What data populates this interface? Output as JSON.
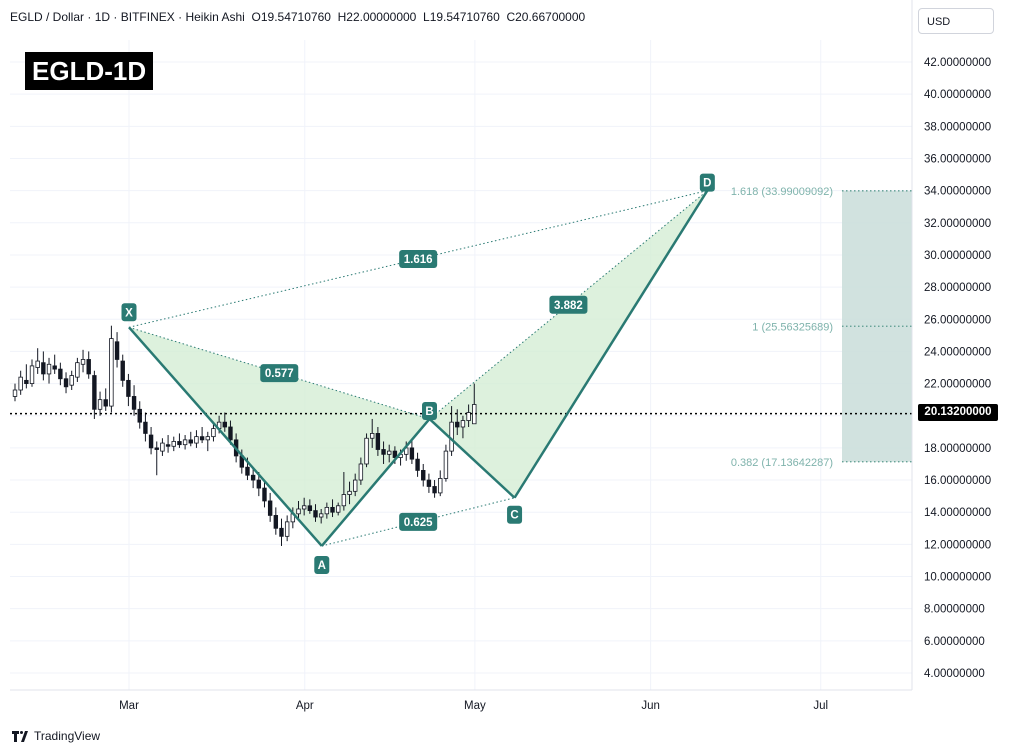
{
  "header": {
    "symbol": "EGLD / Dollar",
    "interval": "1D",
    "exchange": "BITFINEX",
    "style": "Heikin Ashi",
    "sep": "·",
    "slash": "/",
    "open_label": "O",
    "open": "19.54710760",
    "high_label": "H",
    "high": "22.00000000",
    "low_label": "L",
    "low": "19.54710760",
    "close_label": "C",
    "close": "20.66700000"
  },
  "currency": "USD",
  "title_badge": "EGLD-1D",
  "current_price": "20.13200000",
  "footer": {
    "brand": "TradingView"
  },
  "colors": {
    "pattern_line": "#2a7a73",
    "pattern_fill": "#d4edd4",
    "label_bg": "#2a7a73",
    "fib_text": "#7fb3ac",
    "target_box": "#c9ddd9",
    "candle": "#131722",
    "grid": "#f0f3fa"
  },
  "chart_data": {
    "type": "candlestick",
    "chart_style": "Heikin Ashi",
    "y_axis": {
      "scale": "linear",
      "range": [
        3,
        45
      ],
      "ticks": [
        "4.00000000",
        "6.00000000",
        "8.00000000",
        "10.00000000",
        "12.00000000",
        "14.00000000",
        "16.00000000",
        "18.00000000",
        "20.00000000",
        "22.00000000",
        "24.00000000",
        "26.00000000",
        "28.00000000",
        "30.00000000",
        "32.00000000",
        "34.00000000",
        "36.00000000",
        "38.00000000",
        "40.00000000",
        "42.00000000"
      ]
    },
    "x_axis": {
      "ticks": [
        "Mar",
        "Apr",
        "May",
        "Jun",
        "Jul"
      ]
    },
    "grid": true,
    "current_price": 20.132,
    "harmonic_pattern": {
      "points": [
        {
          "label": "X",
          "date": "2024-03-01",
          "value": 25.5
        },
        {
          "label": "A",
          "date": "2024-04-04",
          "value": 11.9
        },
        {
          "label": "B",
          "date": "2024-04-23",
          "value": 19.8
        },
        {
          "label": "C",
          "date": "2024-05-08",
          "value": 14.9
        },
        {
          "label": "D",
          "date": "2024-06-11",
          "value": 34.0
        }
      ],
      "ratios": [
        {
          "label": "0.577",
          "from": "X",
          "to": "B"
        },
        {
          "label": "0.625",
          "from": "A",
          "to": "C"
        },
        {
          "label": "3.882",
          "from": "B",
          "to": "D"
        },
        {
          "label": "1.616",
          "from": "X",
          "to": "D"
        }
      ]
    },
    "fib_levels": [
      {
        "label": "1.618 (33.99009092)",
        "value": 33.99009092
      },
      {
        "label": "1 (25.56325689)",
        "value": 25.56325689
      },
      {
        "label": "0.382 (17.13642287)",
        "value": 17.13642287
      }
    ],
    "target_zone": {
      "from": 17.13642287,
      "to": 33.99009092
    },
    "candles": [
      {
        "o": 21.2,
        "h": 22.0,
        "l": 20.9,
        "c": 21.6
      },
      {
        "o": 21.6,
        "h": 22.8,
        "l": 21.3,
        "c": 22.4
      },
      {
        "o": 22.2,
        "h": 23.2,
        "l": 21.7,
        "c": 22.0
      },
      {
        "o": 22.0,
        "h": 23.5,
        "l": 21.8,
        "c": 23.1
      },
      {
        "o": 23.0,
        "h": 24.2,
        "l": 22.6,
        "c": 23.4
      },
      {
        "o": 23.3,
        "h": 24.0,
        "l": 22.2,
        "c": 22.6
      },
      {
        "o": 22.6,
        "h": 23.6,
        "l": 22.0,
        "c": 23.2
      },
      {
        "o": 23.1,
        "h": 23.8,
        "l": 22.6,
        "c": 22.9
      },
      {
        "o": 22.9,
        "h": 23.3,
        "l": 21.9,
        "c": 22.3
      },
      {
        "o": 22.3,
        "h": 22.7,
        "l": 21.4,
        "c": 21.8
      },
      {
        "o": 21.9,
        "h": 22.8,
        "l": 21.6,
        "c": 22.5
      },
      {
        "o": 22.4,
        "h": 23.6,
        "l": 22.1,
        "c": 23.3
      },
      {
        "o": 23.2,
        "h": 24.1,
        "l": 22.7,
        "c": 23.5
      },
      {
        "o": 23.5,
        "h": 24.0,
        "l": 22.3,
        "c": 22.6
      },
      {
        "o": 22.5,
        "h": 22.8,
        "l": 19.8,
        "c": 20.4
      },
      {
        "o": 20.4,
        "h": 21.5,
        "l": 20.0,
        "c": 21.0
      },
      {
        "o": 21.0,
        "h": 21.7,
        "l": 20.3,
        "c": 20.6
      },
      {
        "o": 20.6,
        "h": 25.6,
        "l": 20.2,
        "c": 24.8
      },
      {
        "o": 24.6,
        "h": 25.2,
        "l": 23.0,
        "c": 23.5
      },
      {
        "o": 23.4,
        "h": 23.8,
        "l": 21.8,
        "c": 22.2
      },
      {
        "o": 22.2,
        "h": 22.6,
        "l": 20.6,
        "c": 21.2
      },
      {
        "o": 21.2,
        "h": 21.9,
        "l": 20.0,
        "c": 20.4
      },
      {
        "o": 20.4,
        "h": 20.9,
        "l": 19.2,
        "c": 19.6
      },
      {
        "o": 19.6,
        "h": 20.2,
        "l": 18.4,
        "c": 18.9
      },
      {
        "o": 18.8,
        "h": 19.3,
        "l": 17.6,
        "c": 18.0
      },
      {
        "o": 18.0,
        "h": 18.4,
        "l": 16.3,
        "c": 17.9
      },
      {
        "o": 17.8,
        "h": 18.6,
        "l": 17.5,
        "c": 18.3
      },
      {
        "o": 18.2,
        "h": 18.8,
        "l": 17.7,
        "c": 18.1
      },
      {
        "o": 18.1,
        "h": 18.7,
        "l": 17.8,
        "c": 18.4
      },
      {
        "o": 18.4,
        "h": 18.9,
        "l": 18.0,
        "c": 18.2
      },
      {
        "o": 18.2,
        "h": 18.8,
        "l": 17.9,
        "c": 18.5
      },
      {
        "o": 18.5,
        "h": 19.0,
        "l": 18.1,
        "c": 18.3
      },
      {
        "o": 18.3,
        "h": 19.1,
        "l": 18.0,
        "c": 18.7
      },
      {
        "o": 18.7,
        "h": 19.3,
        "l": 18.3,
        "c": 18.5
      },
      {
        "o": 18.5,
        "h": 19.0,
        "l": 17.8,
        "c": 18.7
      },
      {
        "o": 18.7,
        "h": 19.5,
        "l": 18.4,
        "c": 19.2
      },
      {
        "o": 19.2,
        "h": 20.0,
        "l": 18.9,
        "c": 19.6
      },
      {
        "o": 19.6,
        "h": 20.2,
        "l": 19.0,
        "c": 19.3
      },
      {
        "o": 19.3,
        "h": 19.7,
        "l": 18.2,
        "c": 18.5
      },
      {
        "o": 18.5,
        "h": 18.9,
        "l": 17.1,
        "c": 17.5
      },
      {
        "o": 17.5,
        "h": 17.9,
        "l": 16.4,
        "c": 16.8
      },
      {
        "o": 16.8,
        "h": 17.4,
        "l": 16.0,
        "c": 16.3
      },
      {
        "o": 16.3,
        "h": 16.8,
        "l": 15.5,
        "c": 16.0
      },
      {
        "o": 16.0,
        "h": 16.5,
        "l": 15.0,
        "c": 15.5
      },
      {
        "o": 15.5,
        "h": 15.9,
        "l": 14.3,
        "c": 14.7
      },
      {
        "o": 14.7,
        "h": 15.2,
        "l": 13.4,
        "c": 13.8
      },
      {
        "o": 13.8,
        "h": 14.3,
        "l": 12.6,
        "c": 13.0
      },
      {
        "o": 13.0,
        "h": 13.6,
        "l": 11.9,
        "c": 12.5
      },
      {
        "o": 12.5,
        "h": 13.8,
        "l": 12.2,
        "c": 13.4
      },
      {
        "o": 13.4,
        "h": 14.3,
        "l": 13.0,
        "c": 13.9
      },
      {
        "o": 13.9,
        "h": 14.7,
        "l": 13.5,
        "c": 14.2
      },
      {
        "o": 14.2,
        "h": 14.9,
        "l": 13.8,
        "c": 14.4
      },
      {
        "o": 14.4,
        "h": 14.8,
        "l": 13.9,
        "c": 14.1
      },
      {
        "o": 14.1,
        "h": 14.5,
        "l": 13.4,
        "c": 13.7
      },
      {
        "o": 13.7,
        "h": 14.2,
        "l": 13.3,
        "c": 13.9
      },
      {
        "o": 13.9,
        "h": 14.6,
        "l": 13.6,
        "c": 14.3
      },
      {
        "o": 14.3,
        "h": 14.8,
        "l": 13.7,
        "c": 14.0
      },
      {
        "o": 14.0,
        "h": 14.6,
        "l": 13.8,
        "c": 14.4
      },
      {
        "o": 14.4,
        "h": 16.5,
        "l": 14.1,
        "c": 15.1
      },
      {
        "o": 15.1,
        "h": 15.9,
        "l": 14.5,
        "c": 15.3
      },
      {
        "o": 15.3,
        "h": 16.4,
        "l": 15.0,
        "c": 16.0
      },
      {
        "o": 16.0,
        "h": 17.4,
        "l": 15.7,
        "c": 17.0
      },
      {
        "o": 17.0,
        "h": 18.9,
        "l": 16.8,
        "c": 18.6
      },
      {
        "o": 18.6,
        "h": 19.8,
        "l": 18.0,
        "c": 18.9
      },
      {
        "o": 18.9,
        "h": 19.3,
        "l": 17.5,
        "c": 17.9
      },
      {
        "o": 17.9,
        "h": 18.4,
        "l": 17.0,
        "c": 17.6
      },
      {
        "o": 17.6,
        "h": 18.2,
        "l": 17.1,
        "c": 17.8
      },
      {
        "o": 17.8,
        "h": 18.1,
        "l": 17.0,
        "c": 17.4
      },
      {
        "o": 17.4,
        "h": 17.9,
        "l": 16.9,
        "c": 17.6
      },
      {
        "o": 17.6,
        "h": 18.4,
        "l": 17.2,
        "c": 18.0
      },
      {
        "o": 18.0,
        "h": 18.5,
        "l": 17.0,
        "c": 17.3
      },
      {
        "o": 17.3,
        "h": 17.7,
        "l": 16.2,
        "c": 16.6
      },
      {
        "o": 16.6,
        "h": 17.0,
        "l": 15.6,
        "c": 16.0
      },
      {
        "o": 16.0,
        "h": 16.4,
        "l": 15.2,
        "c": 15.6
      },
      {
        "o": 15.6,
        "h": 16.0,
        "l": 14.9,
        "c": 15.2
      },
      {
        "o": 15.2,
        "h": 16.6,
        "l": 15.0,
        "c": 16.1
      },
      {
        "o": 16.1,
        "h": 18.2,
        "l": 15.9,
        "c": 17.8
      },
      {
        "o": 17.8,
        "h": 20.6,
        "l": 17.5,
        "c": 19.6
      },
      {
        "o": 19.6,
        "h": 20.4,
        "l": 18.8,
        "c": 19.3
      },
      {
        "o": 19.3,
        "h": 20.0,
        "l": 18.6,
        "c": 19.7
      },
      {
        "o": 19.7,
        "h": 20.7,
        "l": 19.3,
        "c": 20.2
      },
      {
        "o": 19.5,
        "h": 22.0,
        "l": 19.5,
        "c": 20.7
      }
    ]
  }
}
